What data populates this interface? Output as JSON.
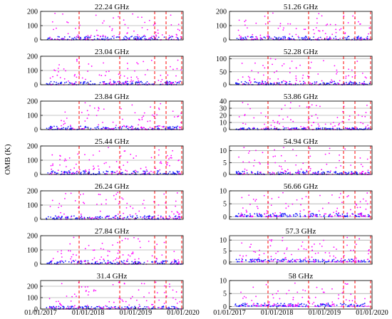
{
  "figure": {
    "ylabel": "OMB (K)",
    "date_ticks": [
      "01/01/2017",
      "01/01/2018",
      "01/01/2019",
      "01/01/2020"
    ],
    "colors": {
      "magenta": "#ff00ff",
      "blue": "#1a1aff",
      "vline": "#ff0000",
      "grid": "#8c8c8c"
    }
  },
  "chart_data": [
    {
      "type": "scatter",
      "title": "22.24 GHz",
      "yticks": [
        0,
        100,
        200
      ],
      "ylim": [
        0,
        200
      ],
      "xlim": [
        "01/01/2017",
        "01/01/2020"
      ],
      "grid": true
    },
    {
      "type": "scatter",
      "title": "23.04 GHz",
      "yticks": [
        0,
        100,
        200
      ],
      "ylim": [
        0,
        200
      ],
      "xlim": [
        "01/01/2017",
        "01/01/2020"
      ],
      "grid": true
    },
    {
      "type": "scatter",
      "title": "23.84 GHz",
      "yticks": [
        0,
        100,
        200
      ],
      "ylim": [
        0,
        200
      ],
      "xlim": [
        "01/01/2017",
        "01/01/2020"
      ],
      "grid": true
    },
    {
      "type": "scatter",
      "title": "25.44 GHz",
      "yticks": [
        0,
        100,
        200
      ],
      "ylim": [
        0,
        200
      ],
      "xlim": [
        "01/01/2017",
        "01/01/2020"
      ],
      "grid": true
    },
    {
      "type": "scatter",
      "title": "26.24 GHz",
      "yticks": [
        0,
        100,
        200
      ],
      "ylim": [
        0,
        200
      ],
      "xlim": [
        "01/01/2017",
        "01/01/2020"
      ],
      "grid": true
    },
    {
      "type": "scatter",
      "title": "27.84 GHz",
      "yticks": [
        0,
        100,
        200
      ],
      "ylim": [
        0,
        200
      ],
      "xlim": [
        "01/01/2017",
        "01/01/2020"
      ],
      "grid": true
    },
    {
      "type": "scatter",
      "title": "31.4 GHz",
      "yticks": [
        0,
        100,
        200
      ],
      "ylim": [
        0,
        250
      ],
      "xlim": [
        "01/01/2017",
        "01/01/2020"
      ],
      "grid": true
    },
    {
      "type": "scatter",
      "title": "51.26 GHz",
      "yticks": [
        0,
        100,
        200
      ],
      "ylim": [
        0,
        200
      ],
      "xlim": [
        "01/01/2017",
        "01/01/2020"
      ],
      "grid": true
    },
    {
      "type": "scatter",
      "title": "52.28 GHz",
      "yticks": [
        0,
        50,
        100
      ],
      "ylim": [
        0,
        110
      ],
      "xlim": [
        "01/01/2017",
        "01/01/2020"
      ],
      "grid": true
    },
    {
      "type": "scatter",
      "title": "53.86 GHz",
      "yticks": [
        0,
        10,
        20,
        30,
        40
      ],
      "ylim": [
        0,
        40
      ],
      "xlim": [
        "01/01/2017",
        "01/01/2020"
      ],
      "grid": true
    },
    {
      "type": "scatter",
      "title": "54.94 GHz",
      "yticks": [
        0,
        5,
        10
      ],
      "ylim": [
        0,
        12
      ],
      "xlim": [
        "01/01/2017",
        "01/01/2020"
      ],
      "grid": true
    },
    {
      "type": "scatter",
      "title": "56.66 GHz",
      "yticks": [
        0,
        5,
        10
      ],
      "ylim": [
        -1,
        10
      ],
      "xlim": [
        "01/01/2017",
        "01/01/2020"
      ],
      "grid": true
    },
    {
      "type": "scatter",
      "title": "57.3 GHz",
      "yticks": [
        0,
        5,
        10
      ],
      "ylim": [
        -1,
        12
      ],
      "xlim": [
        "01/01/2017",
        "01/01/2020"
      ],
      "grid": true
    },
    {
      "type": "scatter",
      "title": "58 GHz",
      "yticks": [
        0,
        5,
        10
      ],
      "ylim": [
        -1,
        10
      ],
      "xlim": [
        "01/01/2017",
        "01/01/2020"
      ],
      "grid": true
    }
  ]
}
